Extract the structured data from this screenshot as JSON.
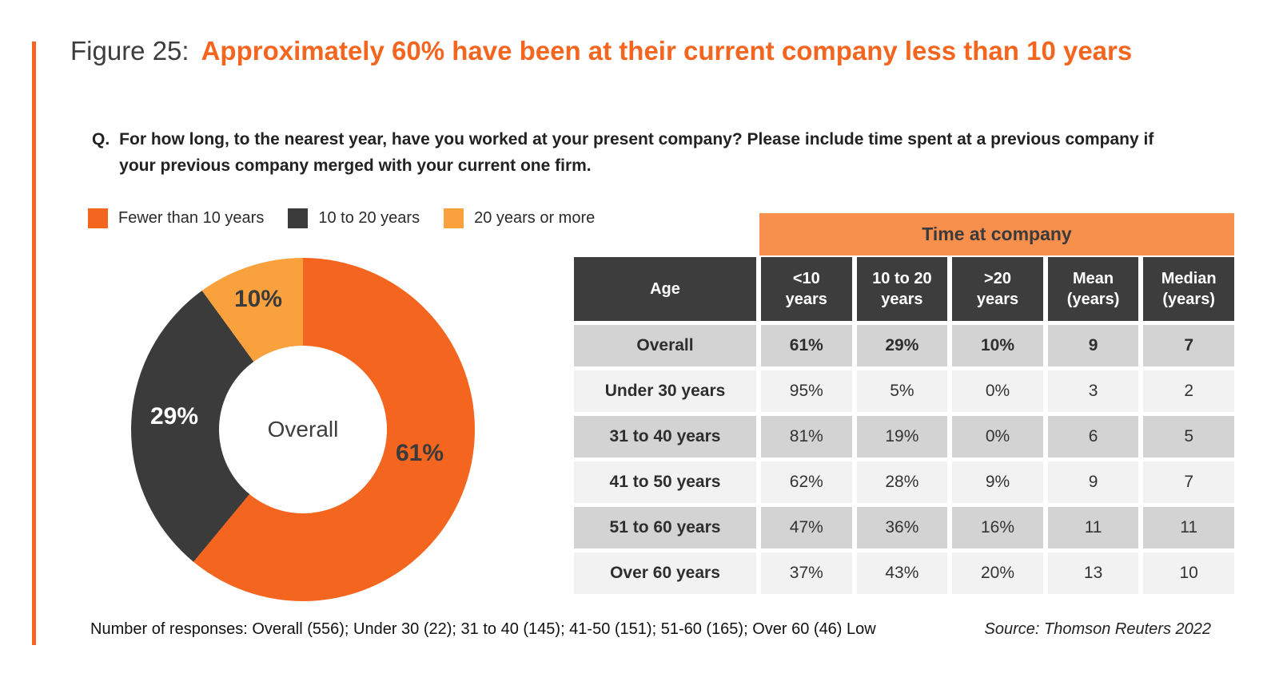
{
  "figure": {
    "label": "Figure 25:",
    "title": "Approximately 60% have been at their current company less than 10 years",
    "question_prefix": "Q.",
    "question": "For how long, to the nearest year, have you worked at your present company? Please include time spent at a previous company if your previous company merged with your current one firm."
  },
  "colors": {
    "orange": "#F4661F",
    "amber": "#F9A13C",
    "charcoal": "#3B3B3B",
    "header_dark": "#3D3D3D",
    "banner_orange": "#F78F4D",
    "row_dark": "#D3D3D3",
    "row_light": "#F2F2F2"
  },
  "legend": [
    {
      "label": "Fewer than 10 years",
      "color": "#F4661F"
    },
    {
      "label": "10 to 20 years",
      "color": "#3B3B3B"
    },
    {
      "label": "20 years or more",
      "color": "#F9A13C"
    }
  ],
  "chart_data": {
    "type": "pie",
    "subtype": "donut",
    "center_label": "Overall",
    "start_angle_deg": 0,
    "direction": "clockwise",
    "slices": [
      {
        "label": "Fewer than 10 years",
        "value": 61,
        "display": "61%",
        "color": "#F4661F"
      },
      {
        "label": "10 to 20 years",
        "value": 29,
        "display": "29%",
        "color": "#3B3B3B"
      },
      {
        "label": "20 years or more",
        "value": 10,
        "display": "10%",
        "color": "#F9A13C"
      }
    ]
  },
  "table": {
    "banner": "Time at company",
    "columns": [
      "Age",
      "<10\nyears",
      "10 to 20\nyears",
      ">20\nyears",
      "Mean\n(years)",
      "Median\n(years)"
    ],
    "rows": [
      [
        "Overall",
        "61%",
        "29%",
        "10%",
        "9",
        "7"
      ],
      [
        "Under 30 years",
        "95%",
        "5%",
        "0%",
        "3",
        "2"
      ],
      [
        "31 to 40 years",
        "81%",
        "19%",
        "0%",
        "6",
        "5"
      ],
      [
        "41 to 50 years",
        "62%",
        "28%",
        "9%",
        "9",
        "7"
      ],
      [
        "51 to 60 years",
        "47%",
        "36%",
        "16%",
        "11",
        "11"
      ],
      [
        "Over 60 years",
        "37%",
        "43%",
        "20%",
        "13",
        "10"
      ]
    ]
  },
  "footer": {
    "note": "Number of responses: Overall (556); Under 30 (22); 31 to 40 (145); 41-50 (151); 51-60 (165); Over 60 (46) Low",
    "source": "Source: Thomson Reuters 2022"
  }
}
